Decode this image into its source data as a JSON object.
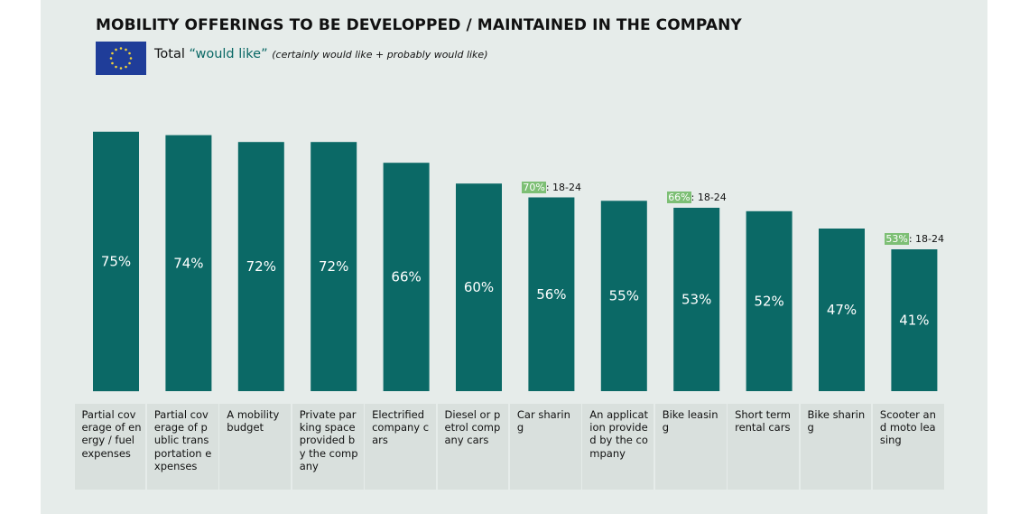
{
  "colors": {
    "panel_background": "#e6ecea",
    "bar": "#0b6966",
    "bar_label": "#ffffff",
    "category_box": "#d9e0dd",
    "highlight": "#7dbf75",
    "flag_blue": "#1f3d99",
    "flag_star": "#f2d33a"
  },
  "header": {
    "title": "MOBILITY OFFERINGS TO BE DEVELOPPED / MAINTAINED IN THE COMPANY",
    "flag_icon": "eu-flag-icon",
    "subtitle_prefix": "Total ",
    "subtitle_quote": "“would like”",
    "subtitle_note": "(certainly would like + probably would like)"
  },
  "chart_data": {
    "type": "bar",
    "title": "MOBILITY OFFERINGS TO BE DEVELOPPED / MAINTAINED IN THE COMPANY",
    "series_name": "Total \"would like\"",
    "categories": [
      "Partial coverage of energy / fuel expenses",
      "Partial coverage of public transportation expenses",
      "A mobility budget",
      "Private parking space provided by the company",
      "Electrified company cars",
      "Diesel or petrol company cars",
      "Car sharing",
      "An application provided by the company",
      "Bike leasing",
      "Short term rental cars",
      "Bike sharing",
      "Scooter and moto leasing"
    ],
    "values": [
      75,
      74,
      72,
      72,
      66,
      60,
      56,
      55,
      53,
      52,
      47,
      41
    ],
    "value_labels": [
      "75%",
      "74%",
      "72%",
      "72%",
      "66%",
      "60%",
      "56%",
      "55%",
      "53%",
      "52%",
      "47%",
      "41%"
    ],
    "unit": "%",
    "ylim": [
      0,
      100
    ],
    "xlabel": "",
    "ylabel": "",
    "grid": false,
    "annotations": [
      {
        "category_index": 6,
        "value_text": "70%",
        "group": ": 18-24"
      },
      {
        "category_index": 8,
        "value_text": "66%",
        "group": ": 18-24"
      },
      {
        "category_index": 11,
        "value_text": "53%",
        "group": ": 18-24"
      }
    ]
  }
}
